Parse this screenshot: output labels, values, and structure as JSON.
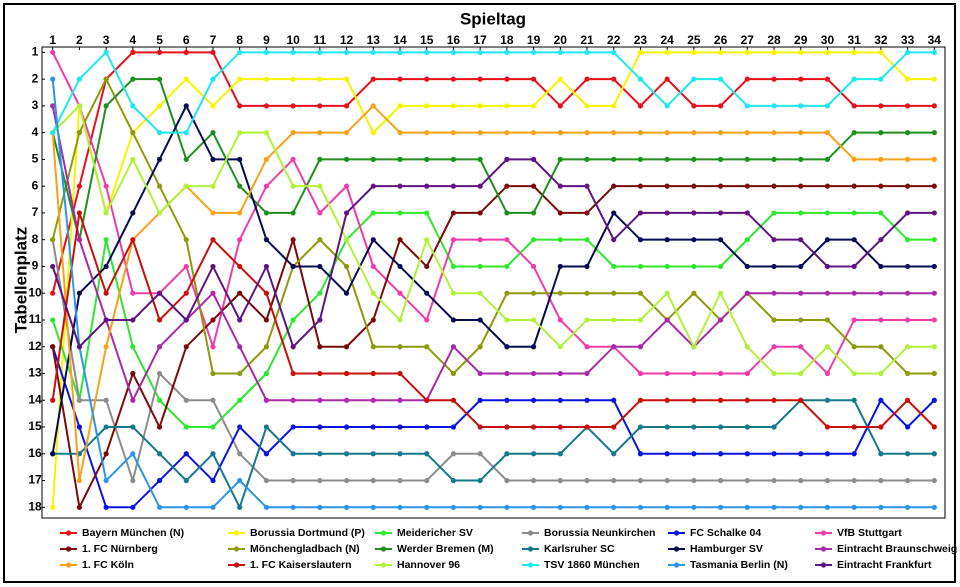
{
  "chart_data": {
    "type": "line",
    "title": "Spieltag",
    "y_label": "Tabellenplatz",
    "y_inverted": true,
    "x": [
      1,
      2,
      3,
      4,
      5,
      6,
      7,
      8,
      9,
      10,
      11,
      12,
      13,
      14,
      15,
      16,
      17,
      18,
      19,
      20,
      21,
      22,
      23,
      24,
      25,
      26,
      27,
      28,
      29,
      30,
      31,
      32,
      33,
      34
    ],
    "xlim": [
      0.6,
      34.4
    ],
    "xticks": [
      1,
      2,
      3,
      4,
      5,
      6,
      7,
      8,
      9,
      10,
      11,
      12,
      13,
      14,
      15,
      16,
      17,
      18,
      19,
      20,
      21,
      22,
      23,
      24,
      25,
      26,
      27,
      28,
      29,
      30,
      31,
      32,
      33,
      34
    ],
    "ylim": [
      18.4,
      0.8
    ],
    "yticks": [
      1,
      2,
      3,
      4,
      5,
      6,
      7,
      8,
      9,
      10,
      11,
      12,
      13,
      14,
      15,
      16,
      17,
      18
    ],
    "series": [
      {
        "name": "Bayern München (N)",
        "color": "#e8101a",
        "values": [
          10,
          6,
          2,
          1,
          1,
          1,
          1,
          3,
          3,
          3,
          3,
          3,
          2,
          2,
          2,
          2,
          2,
          2,
          2,
          3,
          2,
          2,
          3,
          2,
          3,
          3,
          2,
          2,
          2,
          2,
          3,
          3,
          3,
          3
        ]
      },
      {
        "name": "Borussia Dortmund (P)",
        "color": "#f5f500",
        "values": [
          18,
          3,
          7,
          4,
          3,
          2,
          3,
          2,
          2,
          2,
          2,
          2,
          4,
          3,
          3,
          3,
          3,
          3,
          3,
          2,
          3,
          3,
          1,
          1,
          1,
          1,
          1,
          1,
          1,
          1,
          1,
          1,
          2,
          2
        ]
      },
      {
        "name": "Meidericher SV",
        "color": "#2ee82e",
        "values": [
          11,
          14,
          8,
          12,
          14,
          15,
          15,
          14,
          13,
          11,
          10,
          8,
          7,
          7,
          7,
          9,
          9,
          9,
          8,
          8,
          8,
          9,
          9,
          9,
          9,
          9,
          8,
          7,
          7,
          7,
          7,
          7,
          8,
          8
        ]
      },
      {
        "name": "Borussia Neunkirchen",
        "color": "#8c8c8c",
        "values": [
          8,
          14,
          14,
          17,
          13,
          14,
          14,
          16,
          17,
          17,
          17,
          17,
          17,
          17,
          17,
          16,
          16,
          17,
          17,
          17,
          17,
          17,
          17,
          17,
          17,
          17,
          17,
          17,
          17,
          17,
          17,
          17,
          17,
          17
        ]
      },
      {
        "name": "FC Schalke 04",
        "color": "#0a14e0",
        "values": [
          12,
          15,
          18,
          18,
          17,
          16,
          17,
          15,
          16,
          15,
          15,
          15,
          15,
          15,
          15,
          15,
          14,
          14,
          14,
          14,
          14,
          14,
          16,
          16,
          16,
          16,
          16,
          16,
          16,
          16,
          16,
          14,
          15,
          14
        ]
      },
      {
        "name": "VfB Stuttgart",
        "color": "#f03ca8",
        "values": [
          1,
          3,
          6,
          10,
          10,
          9,
          12,
          8,
          6,
          5,
          7,
          6,
          9,
          10,
          11,
          8,
          8,
          8,
          9,
          11,
          12,
          12,
          13,
          13,
          13,
          13,
          13,
          12,
          12,
          13,
          11,
          11,
          11,
          11
        ]
      },
      {
        "name": "1. FC Nürnberg",
        "color": "#7a0a0a",
        "values": [
          12,
          18,
          16,
          13,
          15,
          12,
          11,
          10,
          11,
          8,
          12,
          12,
          11,
          8,
          9,
          7,
          7,
          6,
          6,
          7,
          7,
          6,
          6,
          6,
          6,
          6,
          6,
          6,
          6,
          6,
          6,
          6,
          6,
          6
        ]
      },
      {
        "name": "Mönchengladbach (N)",
        "color": "#8f9a0a",
        "values": [
          8,
          4,
          2,
          4,
          6,
          8,
          13,
          13,
          12,
          9,
          8,
          9,
          12,
          12,
          12,
          13,
          12,
          10,
          10,
          10,
          10,
          10,
          10,
          11,
          10,
          11,
          10,
          11,
          11,
          11,
          12,
          12,
          13,
          13
        ]
      },
      {
        "name": "Werder Bremen (M)",
        "color": "#1f8f1f",
        "values": [
          4,
          8,
          3,
          2,
          2,
          5,
          4,
          6,
          7,
          7,
          5,
          5,
          5,
          5,
          5,
          5,
          5,
          7,
          7,
          5,
          5,
          5,
          5,
          5,
          5,
          5,
          5,
          5,
          5,
          5,
          4,
          4,
          4,
          4
        ]
      },
      {
        "name": "Karlsruher SC",
        "color": "#17788a",
        "values": [
          16,
          16,
          15,
          15,
          16,
          17,
          16,
          18,
          15,
          16,
          16,
          16,
          16,
          16,
          16,
          17,
          17,
          16,
          16,
          16,
          15,
          16,
          15,
          15,
          15,
          15,
          15,
          15,
          14,
          14,
          14,
          16,
          16,
          16
        ]
      },
      {
        "name": "Hamburger SV",
        "color": "#060a50",
        "values": [
          16,
          10,
          9,
          7,
          5,
          3,
          5,
          5,
          8,
          9,
          9,
          10,
          8,
          9,
          10,
          11,
          11,
          12,
          12,
          9,
          9,
          7,
          8,
          8,
          8,
          8,
          9,
          9,
          9,
          8,
          8,
          9,
          9,
          9
        ]
      },
      {
        "name": "Eintracht Braunschweig",
        "color": "#a82aa8",
        "values": [
          3,
          8,
          11,
          14,
          12,
          11,
          10,
          12,
          14,
          14,
          14,
          14,
          14,
          14,
          14,
          12,
          13,
          13,
          13,
          13,
          13,
          12,
          12,
          11,
          12,
          11,
          10,
          10,
          10,
          10,
          10,
          10,
          10,
          10
        ]
      },
      {
        "name": "1. FC Köln",
        "color": "#f7a21a",
        "values": [
          4,
          17,
          12,
          8,
          7,
          6,
          7,
          7,
          5,
          4,
          4,
          4,
          3,
          4,
          4,
          4,
          4,
          4,
          4,
          4,
          4,
          4,
          4,
          4,
          4,
          4,
          4,
          4,
          4,
          4,
          5,
          5,
          5,
          5
        ]
      },
      {
        "name": "1. FC Kaiserslautern",
        "color": "#c8100a",
        "values": [
          14,
          7,
          10,
          8,
          11,
          10,
          8,
          9,
          10,
          13,
          13,
          13,
          13,
          13,
          14,
          14,
          15,
          15,
          15,
          15,
          15,
          15,
          14,
          14,
          14,
          14,
          14,
          14,
          14,
          15,
          15,
          15,
          14,
          15
        ]
      },
      {
        "name": "Hannover 96",
        "color": "#b2f03a",
        "values": [
          4,
          3,
          7,
          5,
          7,
          6,
          6,
          4,
          4,
          6,
          6,
          8,
          10,
          11,
          8,
          10,
          10,
          11,
          11,
          12,
          11,
          11,
          11,
          10,
          12,
          10,
          12,
          13,
          13,
          12,
          13,
          13,
          12,
          12
        ]
      },
      {
        "name": "TSV 1860 München",
        "color": "#1ee8ee",
        "values": [
          4,
          2,
          1,
          3,
          4,
          4,
          2,
          1,
          1,
          1,
          1,
          1,
          1,
          1,
          1,
          1,
          1,
          1,
          1,
          1,
          1,
          1,
          2,
          3,
          2,
          2,
          3,
          3,
          3,
          3,
          2,
          2,
          1,
          1
        ]
      },
      {
        "name": "Tasmania Berlin (N)",
        "color": "#2a96e6",
        "values": [
          2,
          12,
          17,
          16,
          18,
          18,
          18,
          17,
          18,
          18,
          18,
          18,
          18,
          18,
          18,
          18,
          18,
          18,
          18,
          18,
          18,
          18,
          18,
          18,
          18,
          18,
          18,
          18,
          18,
          18,
          18,
          18,
          18,
          18
        ]
      },
      {
        "name": "Eintracht Frankfurt",
        "color": "#5e1480",
        "values": [
          9,
          12,
          11,
          11,
          10,
          11,
          9,
          11,
          9,
          12,
          11,
          7,
          6,
          6,
          6,
          6,
          6,
          5,
          5,
          6,
          6,
          8,
          7,
          7,
          7,
          7,
          7,
          8,
          8,
          9,
          9,
          8,
          7,
          7
        ]
      }
    ]
  }
}
